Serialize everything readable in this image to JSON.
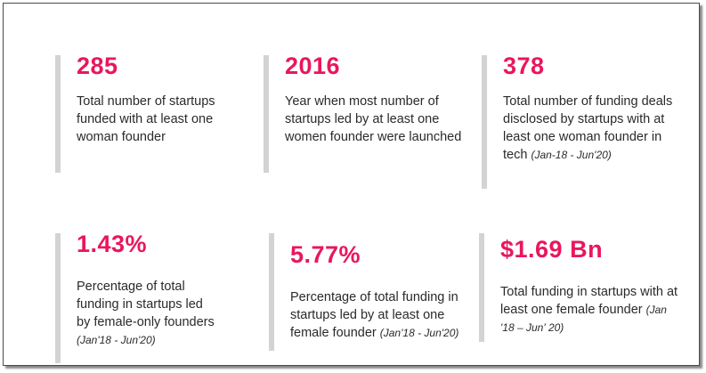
{
  "stats": [
    {
      "value": "285",
      "description": "Total number of startups funded with at least one woman founder",
      "note": ""
    },
    {
      "value": "2016",
      "description": "Year when most number of startups led by at least one women founder were launched",
      "note": ""
    },
    {
      "value": "378",
      "description": "Total number of funding deals disclosed by startups with at least one woman founder in tech",
      "note": "(Jan-18 - Jun'20)"
    },
    {
      "value": "1.43%",
      "description": "Percentage of total funding in startups led by female-only founders",
      "note": "(Jan'18 - Jun'20)"
    },
    {
      "value": "5.77%",
      "description": "Percentage of total funding in startups led by at least one female founder",
      "note": "(Jan'18 - Jun'20)"
    },
    {
      "value": "$1.69 Bn",
      "description": "Total funding in startups with at least one female founder",
      "note": "(Jan '18 – Jun' 20)"
    }
  ],
  "colors": {
    "accent": "#e8175d",
    "bar": "#d3d3d3",
    "text": "#2a2a2a"
  }
}
